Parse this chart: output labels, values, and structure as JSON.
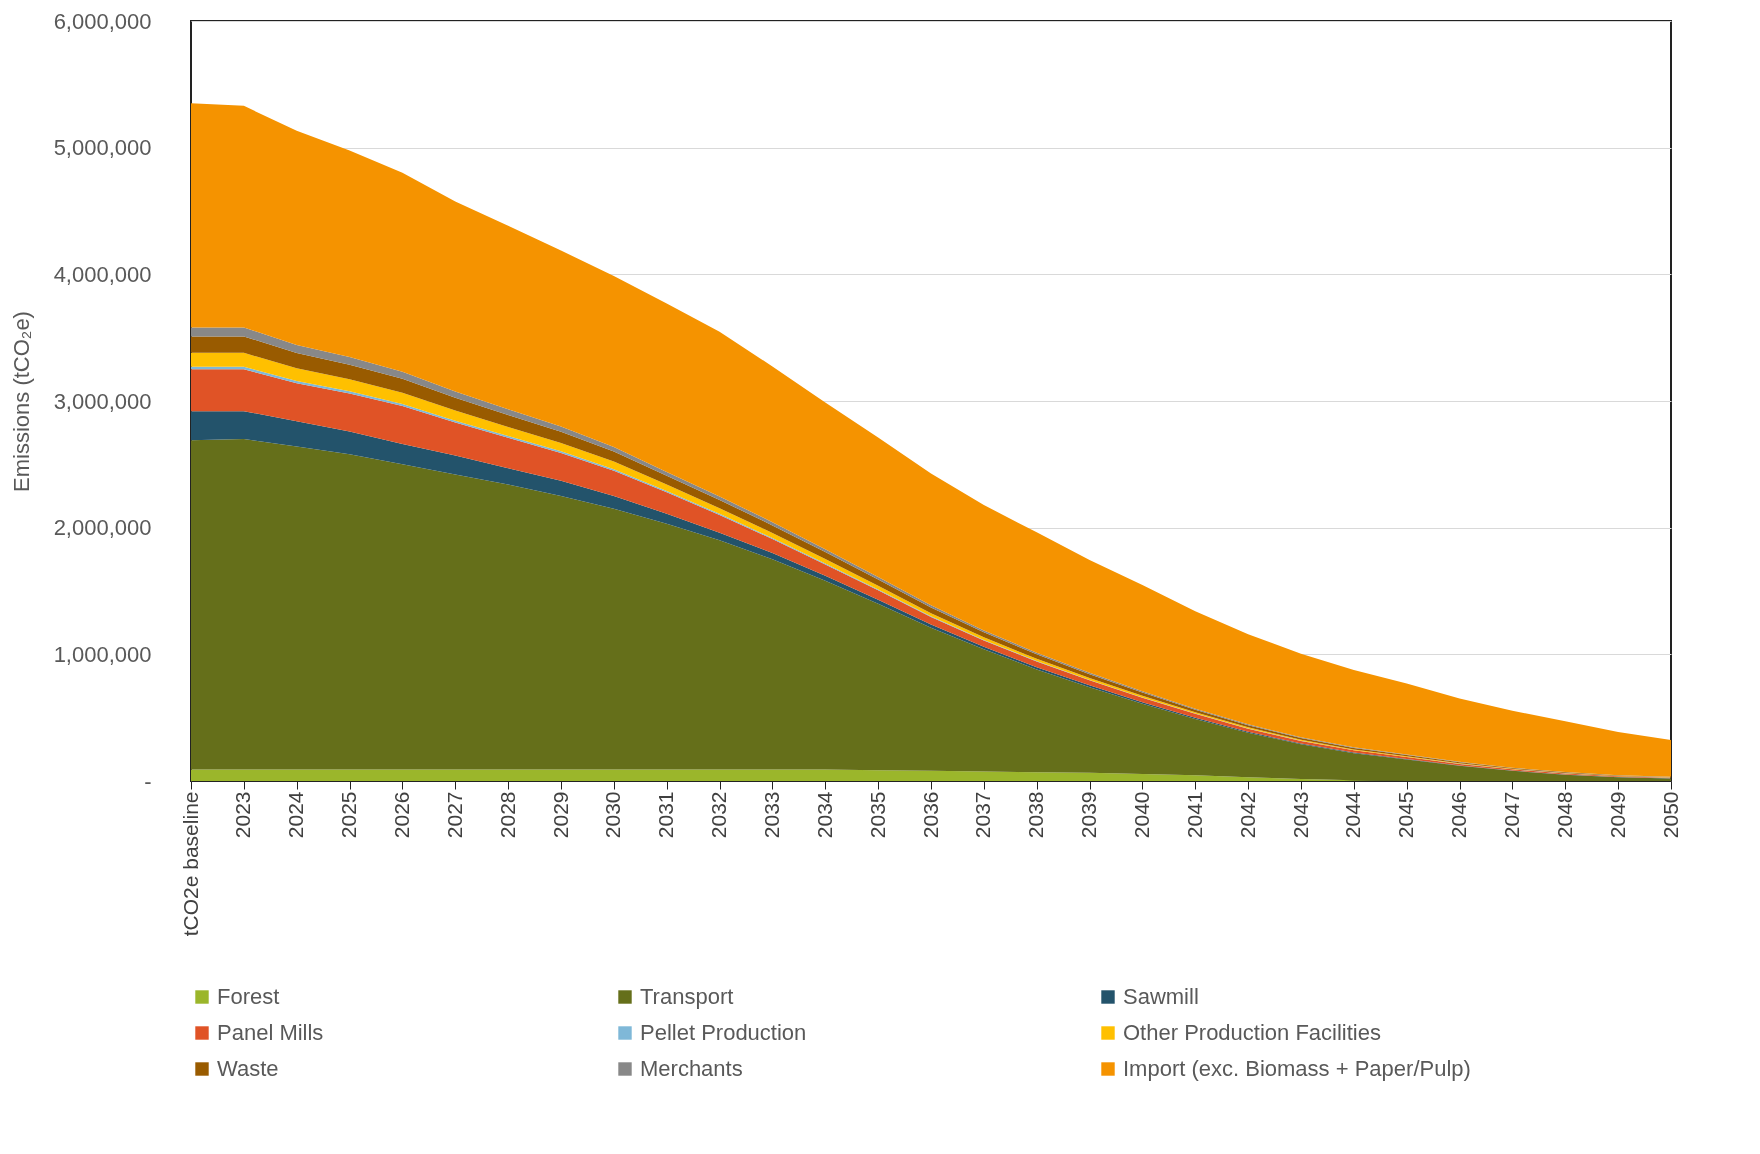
{
  "chart_data": {
    "type": "area",
    "stacked": true,
    "ylabel": "Emissions (tCO₂e)",
    "categories": [
      "tCO2e baseline",
      "2023",
      "2024",
      "2025",
      "2026",
      "2027",
      "2028",
      "2029",
      "2030",
      "2031",
      "2032",
      "2033",
      "2034",
      "2035",
      "2036",
      "2037",
      "2038",
      "2039",
      "2040",
      "2041",
      "2042",
      "2043",
      "2044",
      "2045",
      "2046",
      "2047",
      "2048",
      "2049",
      "2050"
    ],
    "ylim": [
      0,
      6000000
    ],
    "yticks": [
      {
        "value": 0,
        "label": "-"
      },
      {
        "value": 1000000,
        "label": "1,000,000"
      },
      {
        "value": 2000000,
        "label": "2,000,000"
      },
      {
        "value": 3000000,
        "label": "3,000,000"
      },
      {
        "value": 4000000,
        "label": "4,000,000"
      },
      {
        "value": 5000000,
        "label": "5,000,000"
      },
      {
        "value": 6000000,
        "label": "6,000,000"
      }
    ],
    "grid": "y",
    "legend": "bottom",
    "series": [
      {
        "name": "Forest",
        "color": "#9bb62b",
        "values": [
          90000,
          90000,
          90000,
          90000,
          90000,
          90000,
          90000,
          90000,
          90000,
          90000,
          90000,
          90000,
          90000,
          85000,
          80000,
          75000,
          70000,
          65000,
          55000,
          45000,
          30000,
          15000,
          5000,
          0,
          0,
          0,
          0,
          0,
          0
        ]
      },
      {
        "name": "Transport",
        "color": "#656f1a",
        "values": [
          2600000,
          2610000,
          2550000,
          2490000,
          2410000,
          2330000,
          2250000,
          2160000,
          2060000,
          1940000,
          1810000,
          1660000,
          1490000,
          1315000,
          1130000,
          965000,
          810000,
          675000,
          555000,
          445000,
          350000,
          275000,
          215000,
          170000,
          120000,
          80000,
          50000,
          30000,
          20000
        ]
      },
      {
        "name": "Sawmill",
        "color": "#23536b",
        "values": [
          230000,
          220000,
          200000,
          180000,
          160000,
          150000,
          130000,
          120000,
          100000,
          80000,
          60000,
          50000,
          40000,
          30000,
          25000,
          20000,
          18000,
          15000,
          12000,
          10000,
          8000,
          6000,
          5000,
          4000,
          3000,
          2000,
          2000,
          1000,
          1000
        ]
      },
      {
        "name": "Panel Mills",
        "color": "#e05326",
        "values": [
          330000,
          330000,
          300000,
          300000,
          300000,
          260000,
          240000,
          220000,
          200000,
          170000,
          140000,
          110000,
          90000,
          75000,
          60000,
          50000,
          45000,
          40000,
          35000,
          30000,
          25000,
          20000,
          17000,
          15000,
          12000,
          10000,
          8000,
          6000,
          5000
        ]
      },
      {
        "name": "Pellet Production",
        "color": "#7fb8d8",
        "values": [
          20000,
          20000,
          18000,
          17000,
          16000,
          15000,
          14000,
          13000,
          12000,
          10000,
          9000,
          8000,
          7000,
          6000,
          5000,
          4000,
          4000,
          3000,
          3000,
          2000,
          2000,
          2000,
          1000,
          1000,
          1000,
          1000,
          1000,
          1000,
          1000
        ]
      },
      {
        "name": "Other Production Facilities",
        "color": "#ffc000",
        "values": [
          110000,
          110000,
          100000,
          95000,
          90000,
          80000,
          70000,
          65000,
          60000,
          50000,
          45000,
          40000,
          35000,
          30000,
          25000,
          20000,
          18000,
          15000,
          13000,
          11000,
          9000,
          7000,
          6000,
          5000,
          4000,
          3000,
          3000,
          2000,
          2000
        ]
      },
      {
        "name": "Waste",
        "color": "#995b00",
        "values": [
          130000,
          130000,
          120000,
          115000,
          110000,
          100000,
          95000,
          90000,
          80000,
          70000,
          65000,
          60000,
          55000,
          50000,
          45000,
          40000,
          35000,
          30000,
          25000,
          20000,
          17000,
          14000,
          12000,
          10000,
          8000,
          6000,
          5000,
          4000,
          3000
        ]
      },
      {
        "name": "Merchants",
        "color": "#888888",
        "values": [
          70000,
          70000,
          65000,
          60000,
          55000,
          50000,
          45000,
          40000,
          35000,
          30000,
          28000,
          25000,
          22000,
          20000,
          18000,
          15000,
          13000,
          11000,
          10000,
          8000,
          7000,
          6000,
          5000,
          4000,
          3000,
          3000,
          2000,
          2000,
          1000
        ]
      },
      {
        "name": "Import (exc. Biomass + Paper/Pulp)",
        "color": "#f59300",
        "values": [
          1770000,
          1750000,
          1690000,
          1630000,
          1570000,
          1500000,
          1450000,
          1390000,
          1350000,
          1330000,
          1300000,
          1230000,
          1160000,
          1100000,
          1040000,
          990000,
          950000,
          890000,
          840000,
          770000,
          710000,
          660000,
          610000,
          560000,
          500000,
          450000,
          400000,
          340000,
          290000
        ]
      }
    ]
  }
}
